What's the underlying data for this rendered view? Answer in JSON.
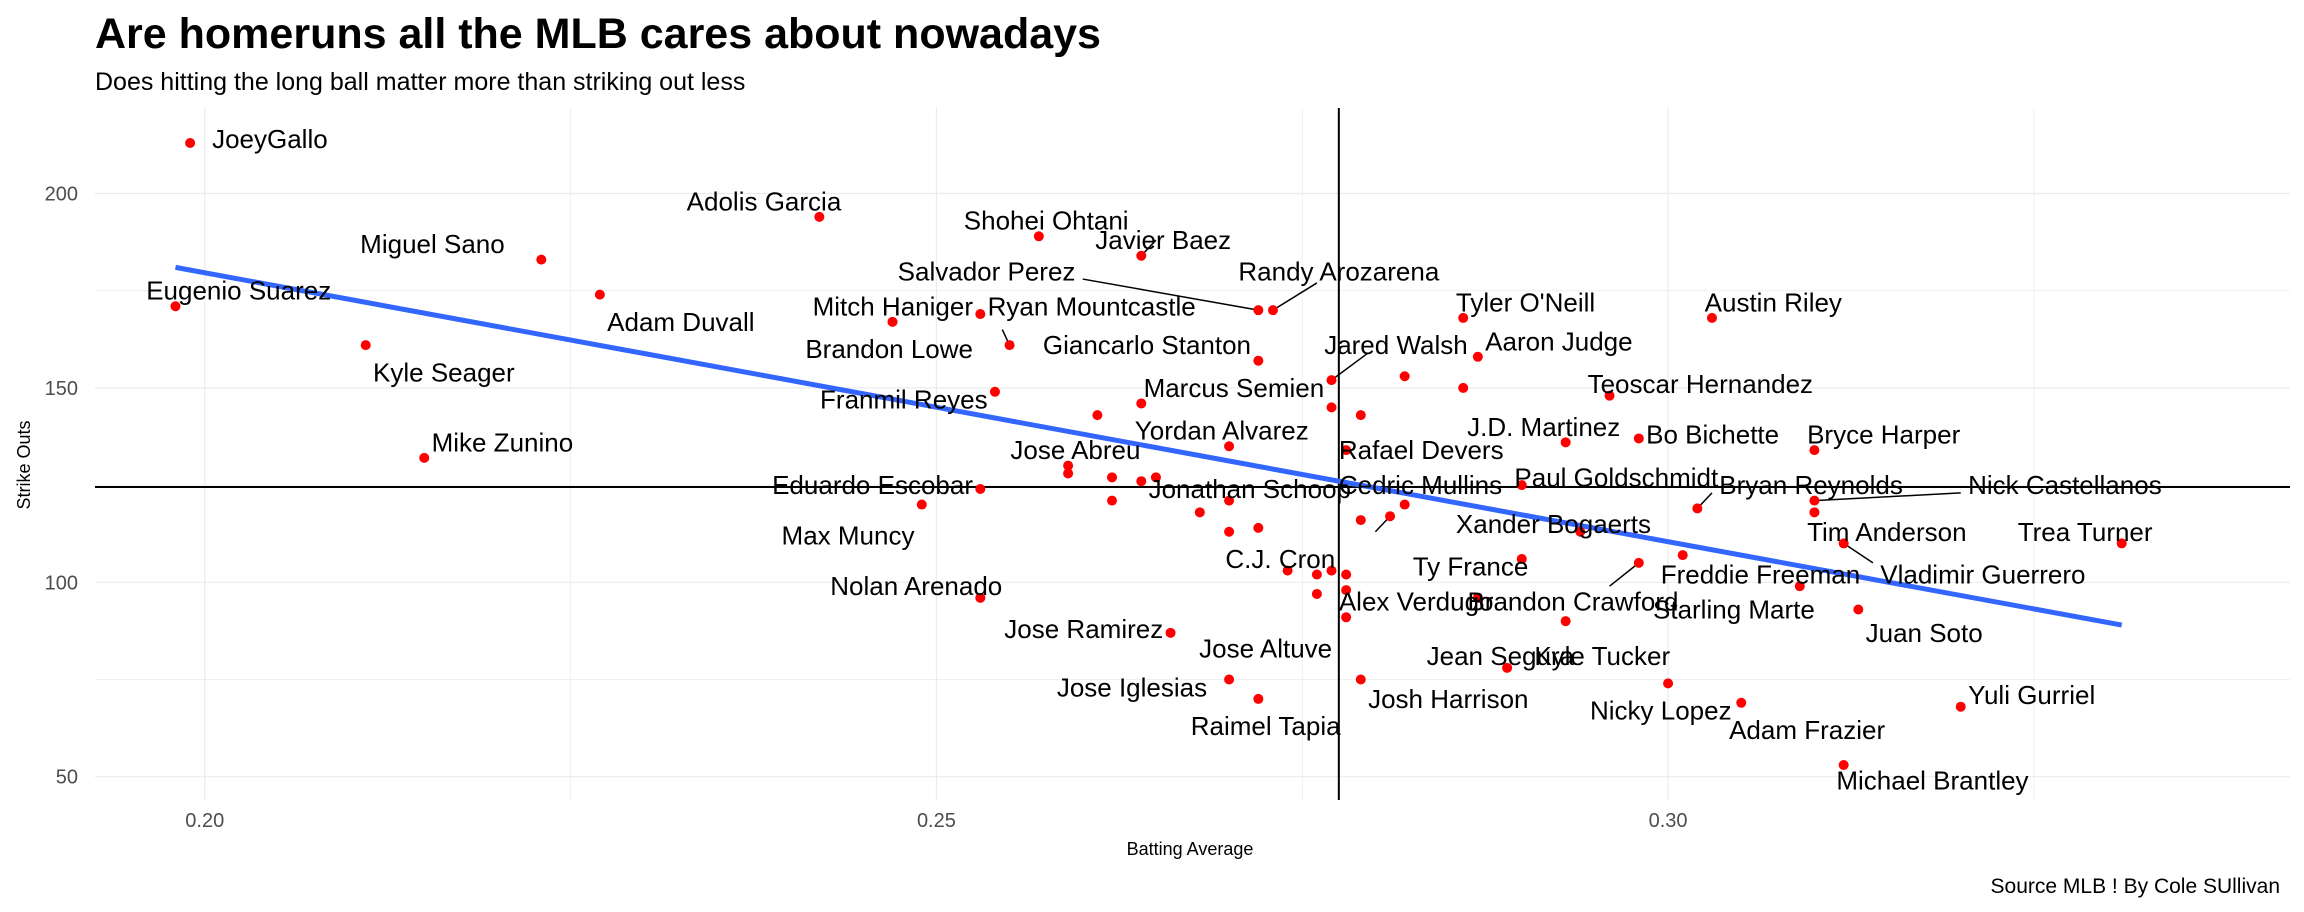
{
  "chart_data": {
    "type": "scatter",
    "title": "Are homeruns all the MLB cares about nowadays",
    "subtitle": "Does hitting the long ball matter more than striking out less",
    "xlabel": "Batting Average",
    "ylabel": "Strike Outs",
    "caption": "Source MLB ! By Cole SUllivan",
    "xlim": [
      0.1925,
      0.3425
    ],
    "ylim": [
      44,
      222
    ],
    "x_ticks": [
      0.2,
      0.25,
      0.3
    ],
    "x_tick_labels": [
      "0.20",
      "0.25",
      "0.30"
    ],
    "y_ticks": [
      50,
      100,
      150,
      200
    ],
    "y_tick_labels": [
      "50",
      "100",
      "150",
      "200"
    ],
    "reference_lines": {
      "x": 0.2775,
      "y": 124.5
    },
    "trend_line": {
      "x": [
        0.198,
        0.331
      ],
      "y": [
        181,
        89
      ]
    },
    "grid": true,
    "legend": "none",
    "point_color": "#ff0000",
    "trend_color": "#3366ff",
    "points": [
      {
        "x": 0.199,
        "y": 213
      },
      {
        "x": 0.198,
        "y": 171
      },
      {
        "x": 0.223,
        "y": 183
      },
      {
        "x": 0.227,
        "y": 174
      },
      {
        "x": 0.211,
        "y": 161
      },
      {
        "x": 0.215,
        "y": 132
      },
      {
        "x": 0.242,
        "y": 194
      },
      {
        "x": 0.257,
        "y": 189
      },
      {
        "x": 0.264,
        "y": 184
      },
      {
        "x": 0.247,
        "y": 167
      },
      {
        "x": 0.253,
        "y": 169
      },
      {
        "x": 0.255,
        "y": 161
      },
      {
        "x": 0.254,
        "y": 149
      },
      {
        "x": 0.261,
        "y": 143
      },
      {
        "x": 0.264,
        "y": 146
      },
      {
        "x": 0.272,
        "y": 170
      },
      {
        "x": 0.273,
        "y": 170
      },
      {
        "x": 0.272,
        "y": 157
      },
      {
        "x": 0.277,
        "y": 152
      },
      {
        "x": 0.277,
        "y": 145
      },
      {
        "x": 0.279,
        "y": 143
      },
      {
        "x": 0.282,
        "y": 153
      },
      {
        "x": 0.286,
        "y": 168
      },
      {
        "x": 0.287,
        "y": 158
      },
      {
        "x": 0.286,
        "y": 150
      },
      {
        "x": 0.303,
        "y": 168
      },
      {
        "x": 0.296,
        "y": 148
      },
      {
        "x": 0.298,
        "y": 137
      },
      {
        "x": 0.293,
        "y": 136
      },
      {
        "x": 0.31,
        "y": 134
      },
      {
        "x": 0.278,
        "y": 134
      },
      {
        "x": 0.27,
        "y": 135
      },
      {
        "x": 0.259,
        "y": 130
      },
      {
        "x": 0.259,
        "y": 128
      },
      {
        "x": 0.262,
        "y": 127
      },
      {
        "x": 0.265,
        "y": 127
      },
      {
        "x": 0.264,
        "y": 126
      },
      {
        "x": 0.253,
        "y": 124
      },
      {
        "x": 0.249,
        "y": 120
      },
      {
        "x": 0.262,
        "y": 121
      },
      {
        "x": 0.268,
        "y": 118
      },
      {
        "x": 0.27,
        "y": 121
      },
      {
        "x": 0.27,
        "y": 113
      },
      {
        "x": 0.272,
        "y": 114
      },
      {
        "x": 0.274,
        "y": 103
      },
      {
        "x": 0.276,
        "y": 102
      },
      {
        "x": 0.278,
        "y": 102
      },
      {
        "x": 0.277,
        "y": 103
      },
      {
        "x": 0.278,
        "y": 98
      },
      {
        "x": 0.276,
        "y": 97
      },
      {
        "x": 0.279,
        "y": 116
      },
      {
        "x": 0.281,
        "y": 117
      },
      {
        "x": 0.282,
        "y": 120
      },
      {
        "x": 0.29,
        "y": 125
      },
      {
        "x": 0.294,
        "y": 113
      },
      {
        "x": 0.302,
        "y": 119
      },
      {
        "x": 0.31,
        "y": 121
      },
      {
        "x": 0.31,
        "y": 118
      },
      {
        "x": 0.312,
        "y": 110
      },
      {
        "x": 0.301,
        "y": 107
      },
      {
        "x": 0.298,
        "y": 105
      },
      {
        "x": 0.29,
        "y": 106
      },
      {
        "x": 0.309,
        "y": 99
      },
      {
        "x": 0.313,
        "y": 93
      },
      {
        "x": 0.278,
        "y": 91
      },
      {
        "x": 0.287,
        "y": 96
      },
      {
        "x": 0.293,
        "y": 90
      },
      {
        "x": 0.289,
        "y": 78
      },
      {
        "x": 0.3,
        "y": 74
      },
      {
        "x": 0.305,
        "y": 69
      },
      {
        "x": 0.32,
        "y": 68
      },
      {
        "x": 0.331,
        "y": 110
      },
      {
        "x": 0.312,
        "y": 53
      },
      {
        "x": 0.27,
        "y": 75
      },
      {
        "x": 0.272,
        "y": 70
      },
      {
        "x": 0.279,
        "y": 75
      },
      {
        "x": 0.253,
        "y": 96
      },
      {
        "x": 0.266,
        "y": 87
      }
    ],
    "labels": [
      {
        "text": "JoeyGallo",
        "x": 0.2005,
        "y": 214,
        "anchor": "start"
      },
      {
        "text": "Eugenio Suarez",
        "x": 0.196,
        "y": 175,
        "anchor": "start"
      },
      {
        "text": "Miguel Sano",
        "x": 0.2205,
        "y": 187,
        "anchor": "end"
      },
      {
        "text": "Adam Duvall",
        "x": 0.2275,
        "y": 167,
        "anchor": "start"
      },
      {
        "text": "Kyle Seager",
        "x": 0.2115,
        "y": 154,
        "anchor": "start"
      },
      {
        "text": "Mike Zunino",
        "x": 0.2155,
        "y": 136,
        "anchor": "start"
      },
      {
        "text": "Adolis Garcia",
        "x": 0.2435,
        "y": 198,
        "anchor": "end"
      },
      {
        "text": "Shohei Ohtani",
        "x": 0.2575,
        "y": 193,
        "anchor": "middle"
      },
      {
        "text": "Javier Baez",
        "x": 0.2655,
        "y": 188,
        "anchor": "middle"
      },
      {
        "text": "Salvador Perez",
        "x": 0.2595,
        "y": 180,
        "anchor": "end"
      },
      {
        "text": "Randy Arozarena",
        "x": 0.2775,
        "y": 180,
        "anchor": "middle"
      },
      {
        "text": "Mitch Haniger",
        "x": 0.2525,
        "y": 171,
        "anchor": "end"
      },
      {
        "text": "Ryan Mountcastle",
        "x": 0.2535,
        "y": 171,
        "anchor": "start"
      },
      {
        "text": "Brandon Lowe",
        "x": 0.2525,
        "y": 160,
        "anchor": "end"
      },
      {
        "text": "Giancarlo Stanton",
        "x": 0.2715,
        "y": 161,
        "anchor": "end"
      },
      {
        "text": "Jared Walsh",
        "x": 0.2765,
        "y": 161,
        "anchor": "start"
      },
      {
        "text": "Tyler O'Neill",
        "x": 0.2855,
        "y": 172,
        "anchor": "start"
      },
      {
        "text": "Aaron Judge",
        "x": 0.2875,
        "y": 162,
        "anchor": "start"
      },
      {
        "text": "Austin Riley",
        "x": 0.3025,
        "y": 172,
        "anchor": "start"
      },
      {
        "text": "Franmil Reyes",
        "x": 0.2535,
        "y": 147,
        "anchor": "end"
      },
      {
        "text": "Marcus Semien",
        "x": 0.2765,
        "y": 150,
        "anchor": "end"
      },
      {
        "text": "Teoscar Hernandez",
        "x": 0.2945,
        "y": 151,
        "anchor": "start"
      },
      {
        "text": "J.D. Martinez",
        "x": 0.2915,
        "y": 140,
        "anchor": "middle"
      },
      {
        "text": "Bo Bichette",
        "x": 0.2985,
        "y": 138,
        "anchor": "start"
      },
      {
        "text": "Bryce Harper",
        "x": 0.3095,
        "y": 138,
        "anchor": "start"
      },
      {
        "text": "Jose Abreu",
        "x": 0.2595,
        "y": 134,
        "anchor": "middle"
      },
      {
        "text": "Yordan Alvarez",
        "x": 0.2695,
        "y": 139,
        "anchor": "middle"
      },
      {
        "text": "Rafael Devers",
        "x": 0.2775,
        "y": 134,
        "anchor": "start"
      },
      {
        "text": "Paul Goldschmidt",
        "x": 0.2895,
        "y": 127,
        "anchor": "start"
      },
      {
        "text": "Eduardo Escobar",
        "x": 0.2525,
        "y": 125,
        "anchor": "end"
      },
      {
        "text": "Jonathan Schoop",
        "x": 0.2645,
        "y": 124,
        "anchor": "start"
      },
      {
        "text": "Cedric Mullins",
        "x": 0.2775,
        "y": 125,
        "anchor": "start"
      },
      {
        "text": "Bryan Reynolds",
        "x": 0.3035,
        "y": 125,
        "anchor": "start"
      },
      {
        "text": "Nick Castellanos",
        "x": 0.3205,
        "y": 125,
        "anchor": "start"
      },
      {
        "text": "Max Muncy",
        "x": 0.2485,
        "y": 112,
        "anchor": "end"
      },
      {
        "text": "Xander Bogaerts",
        "x": 0.2855,
        "y": 115,
        "anchor": "start"
      },
      {
        "text": "Tim Anderson",
        "x": 0.3095,
        "y": 113,
        "anchor": "start"
      },
      {
        "text": "Trea Turner",
        "x": 0.3285,
        "y": 113,
        "anchor": "middle"
      },
      {
        "text": "C.J. Cron",
        "x": 0.2735,
        "y": 106,
        "anchor": "middle"
      },
      {
        "text": "Ty France",
        "x": 0.2865,
        "y": 104,
        "anchor": "middle"
      },
      {
        "text": "Freddie Freeman",
        "x": 0.2995,
        "y": 102,
        "anchor": "start"
      },
      {
        "text": "Vladimir Guerrero",
        "x": 0.3145,
        "y": 102,
        "anchor": "start"
      },
      {
        "text": "Nolan Arenado",
        "x": 0.2545,
        "y": 99,
        "anchor": "end"
      },
      {
        "text": "Alex Verdugo",
        "x": 0.2775,
        "y": 95,
        "anchor": "start"
      },
      {
        "text": "Brandon Crawford",
        "x": 0.2935,
        "y": 95,
        "anchor": "middle"
      },
      {
        "text": "Starling Marte",
        "x": 0.3045,
        "y": 93,
        "anchor": "middle"
      },
      {
        "text": "Jose Ramirez",
        "x": 0.2655,
        "y": 88,
        "anchor": "end"
      },
      {
        "text": "Juan Soto",
        "x": 0.3175,
        "y": 87,
        "anchor": "middle"
      },
      {
        "text": "Jose Altuve",
        "x": 0.2725,
        "y": 83,
        "anchor": "middle"
      },
      {
        "text": "Jean Segura",
        "x": 0.2835,
        "y": 81,
        "anchor": "start"
      },
      {
        "text": "Kyle Tucker",
        "x": 0.2955,
        "y": 81,
        "anchor": "middle"
      },
      {
        "text": "Jose Iglesias",
        "x": 0.2685,
        "y": 73,
        "anchor": "end"
      },
      {
        "text": "Josh Harrison",
        "x": 0.2795,
        "y": 70,
        "anchor": "start"
      },
      {
        "text": "Yuli Gurriel",
        "x": 0.3205,
        "y": 71,
        "anchor": "start"
      },
      {
        "text": "Nicky Lopez",
        "x": 0.2995,
        "y": 67,
        "anchor": "middle"
      },
      {
        "text": "Raimel Tapia",
        "x": 0.2725,
        "y": 63,
        "anchor": "middle"
      },
      {
        "text": "Adam Frazier",
        "x": 0.3095,
        "y": 62,
        "anchor": "middle"
      },
      {
        "text": "Michael Brantley",
        "x": 0.3115,
        "y": 49,
        "anchor": "start"
      }
    ],
    "connectors": [
      {
        "x1": 0.265,
        "y1": 188,
        "x2": 0.264,
        "y2": 184
      },
      {
        "x1": 0.26,
        "y1": 178,
        "x2": 0.272,
        "y2": 170
      },
      {
        "x1": 0.276,
        "y1": 177,
        "x2": 0.273,
        "y2": 170
      },
      {
        "x1": 0.2545,
        "y1": 165,
        "x2": 0.255,
        "y2": 161
      },
      {
        "x1": 0.2795,
        "y1": 159,
        "x2": 0.277,
        "y2": 152
      },
      {
        "x1": 0.303,
        "y1": 123,
        "x2": 0.302,
        "y2": 119
      },
      {
        "x1": 0.32,
        "y1": 123,
        "x2": 0.31,
        "y2": 121
      },
      {
        "x1": 0.314,
        "y1": 105,
        "x2": 0.312,
        "y2": 110
      },
      {
        "x1": 0.28,
        "y1": 113,
        "x2": 0.281,
        "y2": 117
      },
      {
        "x1": 0.296,
        "y1": 99,
        "x2": 0.298,
        "y2": 105
      }
    ]
  }
}
